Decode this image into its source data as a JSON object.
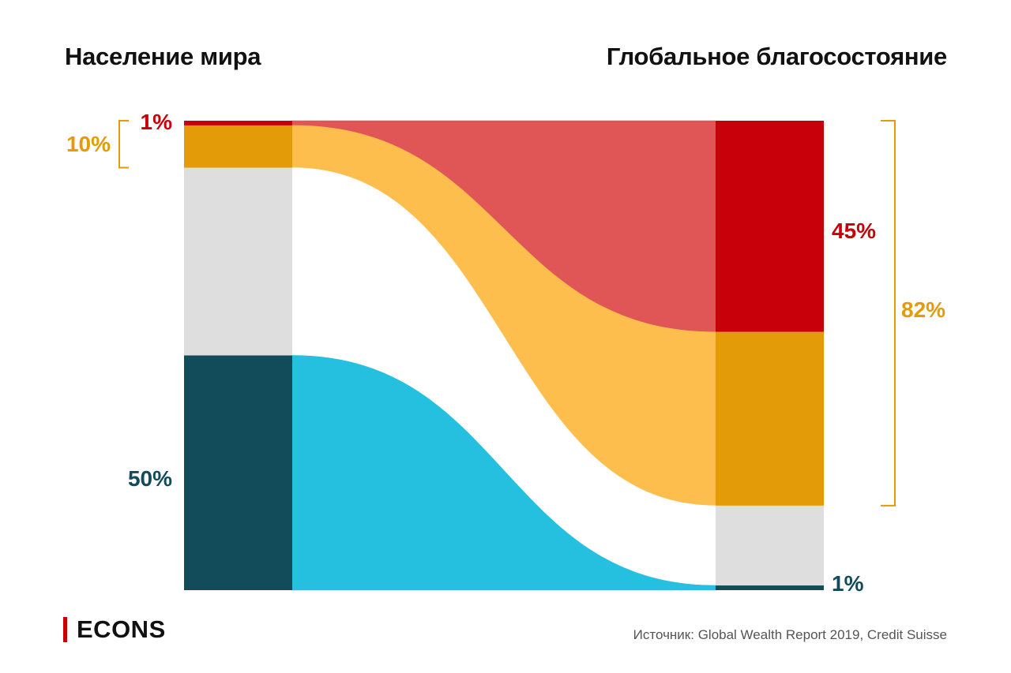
{
  "header": {
    "left_title": "Население мира",
    "right_title": "Глобальное благосостояние"
  },
  "footer": {
    "brand": "ECONS",
    "source": "Источник: Global Wealth Report 2019, Credit Suisse"
  },
  "chart_data": {
    "type": "sankey",
    "left_axis": "Население мира",
    "right_axis": "Глобальное благосостояние",
    "groups": [
      {
        "id": "top1",
        "population_share": 1,
        "wealth_share": 45
      },
      {
        "id": "next9",
        "population_share": 9,
        "wealth_share": 37
      },
      {
        "id": "middle40",
        "population_share": 40,
        "wealth_share": 17
      },
      {
        "id": "bottom50",
        "population_share": 50,
        "wealth_share": 1
      }
    ],
    "labels_left": [
      {
        "text": "1%",
        "color": "#c8000a"
      },
      {
        "text": "10%",
        "color": "#e39b08",
        "bracket": true
      },
      {
        "text": "50%",
        "color": "#124c5a"
      }
    ],
    "labels_right": [
      {
        "text": "45%",
        "color": "#c8000a"
      },
      {
        "text": "82%",
        "color": "#e39b08",
        "bracket": true
      },
      {
        "text": "1%",
        "color": "#124c5a"
      }
    ],
    "colors": {
      "top1_bar": "#c8000a",
      "top1_flow": "#e05555",
      "next9_bar": "#e39b08",
      "next9_flow": "#fdbe4d",
      "middle40_bar": "#dedede",
      "middle40_flow": "#ffffff",
      "bottom50_bar": "#124c5a",
      "bottom50_flow": "#25c0e0",
      "bracket": "#e39b08"
    }
  }
}
